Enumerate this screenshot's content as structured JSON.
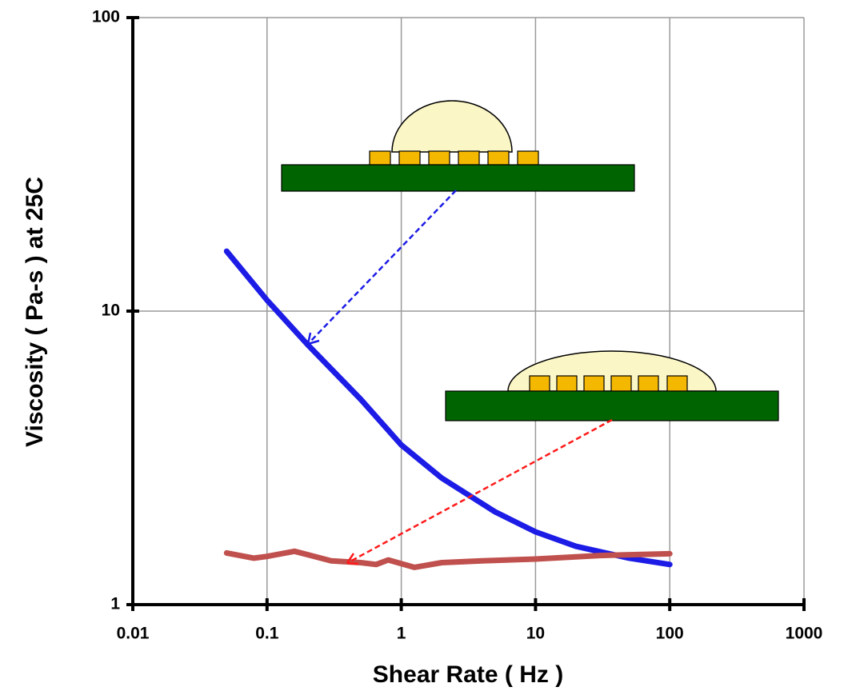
{
  "chart_data": {
    "type": "line",
    "xlabel": "Shear Rate ( Hz )",
    "ylabel": "Viscosity ( Pa-s ) at 25C",
    "xscale": "log",
    "yscale": "log",
    "xlim": [
      0.01,
      1000
    ],
    "xticks": [
      0.01,
      0.1,
      1,
      10,
      100,
      1000
    ],
    "ylim": [
      1,
      100
    ],
    "yticks": [
      1,
      10,
      100
    ],
    "grid": true,
    "series": [
      {
        "color": "#1c1ce6",
        "x": [
          0.05,
          0.1,
          0.2,
          0.5,
          1,
          2,
          5,
          10,
          20,
          50,
          100
        ],
        "values": [
          16,
          10.9,
          7.7,
          5.0,
          3.5,
          2.7,
          2.07,
          1.77,
          1.58,
          1.44,
          1.37
        ]
      },
      {
        "color": "#c0504d",
        "x": [
          0.05,
          0.08,
          0.1,
          0.16,
          0.3,
          0.5,
          0.65,
          0.8,
          1.25,
          2,
          4,
          10,
          30,
          100
        ],
        "values": [
          1.5,
          1.44,
          1.46,
          1.52,
          1.41,
          1.39,
          1.37,
          1.42,
          1.34,
          1.39,
          1.41,
          1.43,
          1.47,
          1.49
        ]
      }
    ]
  }
}
